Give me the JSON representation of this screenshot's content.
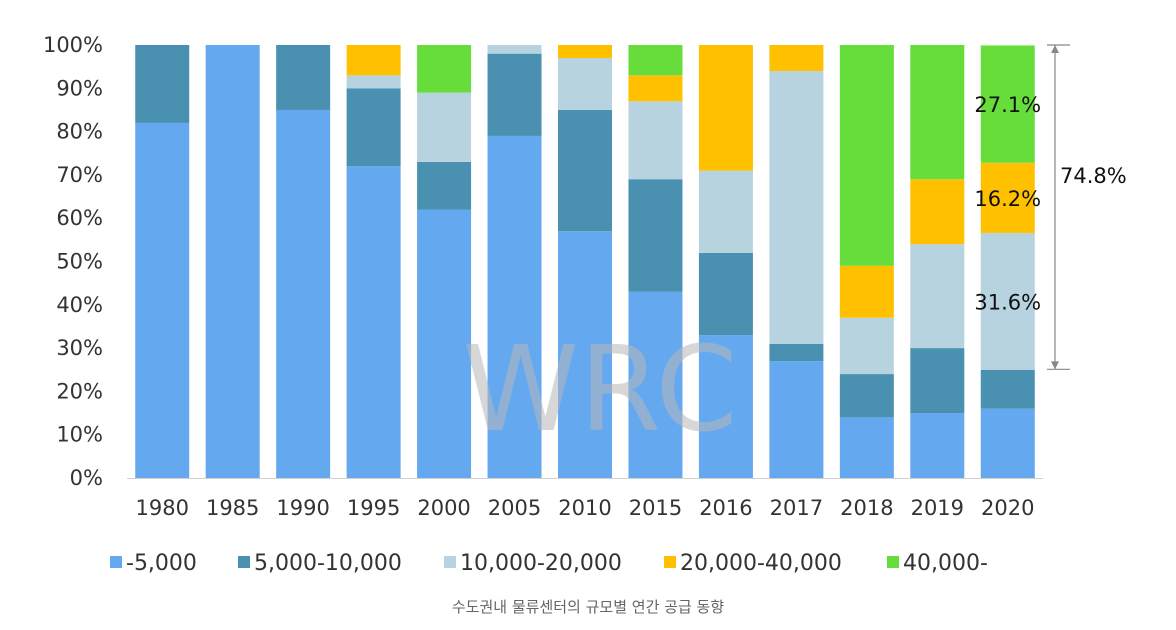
{
  "chart_data": {
    "type": "bar",
    "stacked": true,
    "normalized": true,
    "categories": [
      "1980",
      "1985",
      "1990",
      "1995",
      "2000",
      "2005",
      "2010",
      "2015",
      "2016",
      "2017",
      "2018",
      "2019",
      "2020"
    ],
    "series": [
      {
        "name": "-5,000",
        "color": "#64a8f0",
        "values": [
          82,
          100,
          85,
          72,
          62,
          79,
          57,
          43,
          33,
          27,
          14,
          15,
          16
        ]
      },
      {
        "name": "5,000-10,000",
        "color": "#4a90b0",
        "values": [
          18,
          0,
          15,
          18,
          11,
          19,
          28,
          26,
          19,
          4,
          10,
          15,
          9
        ]
      },
      {
        "name": "10,000-20,000",
        "color": "#b8d3e0",
        "values": [
          0,
          0,
          0,
          3,
          16,
          2,
          12,
          18,
          19,
          63,
          13,
          24,
          31.6
        ]
      },
      {
        "name": "20,000-40,000",
        "color": "#ffc000",
        "values": [
          0,
          0,
          0,
          7,
          0,
          0,
          3,
          6,
          29,
          6,
          12,
          15,
          16.2
        ]
      },
      {
        "name": "40,000-",
        "color": "#66dd3a",
        "values": [
          0,
          0,
          0,
          0,
          11,
          0,
          0,
          7,
          0,
          0,
          51,
          31,
          27.1
        ]
      }
    ],
    "ylim": [
      0,
      100
    ],
    "y_ticks": [
      "0%",
      "10%",
      "20%",
      "30%",
      "40%",
      "50%",
      "60%",
      "70%",
      "80%",
      "90%",
      "100%"
    ],
    "grid": false,
    "legend_position": "bottom",
    "annotations": [
      {
        "category": "2020",
        "series": "40,000-",
        "text": "27.1%"
      },
      {
        "category": "2020",
        "series": "20,000-40,000",
        "text": "16.2%"
      },
      {
        "category": "2020",
        "series": "10,000-20,000",
        "text": "31.6%"
      }
    ],
    "bracket": {
      "category": "2020",
      "from": 25.1,
      "to": 100,
      "text": "74.8%"
    },
    "watermark": "WRC"
  },
  "caption": "수도권내 물류센터의 규모별 연간 공급 동향"
}
